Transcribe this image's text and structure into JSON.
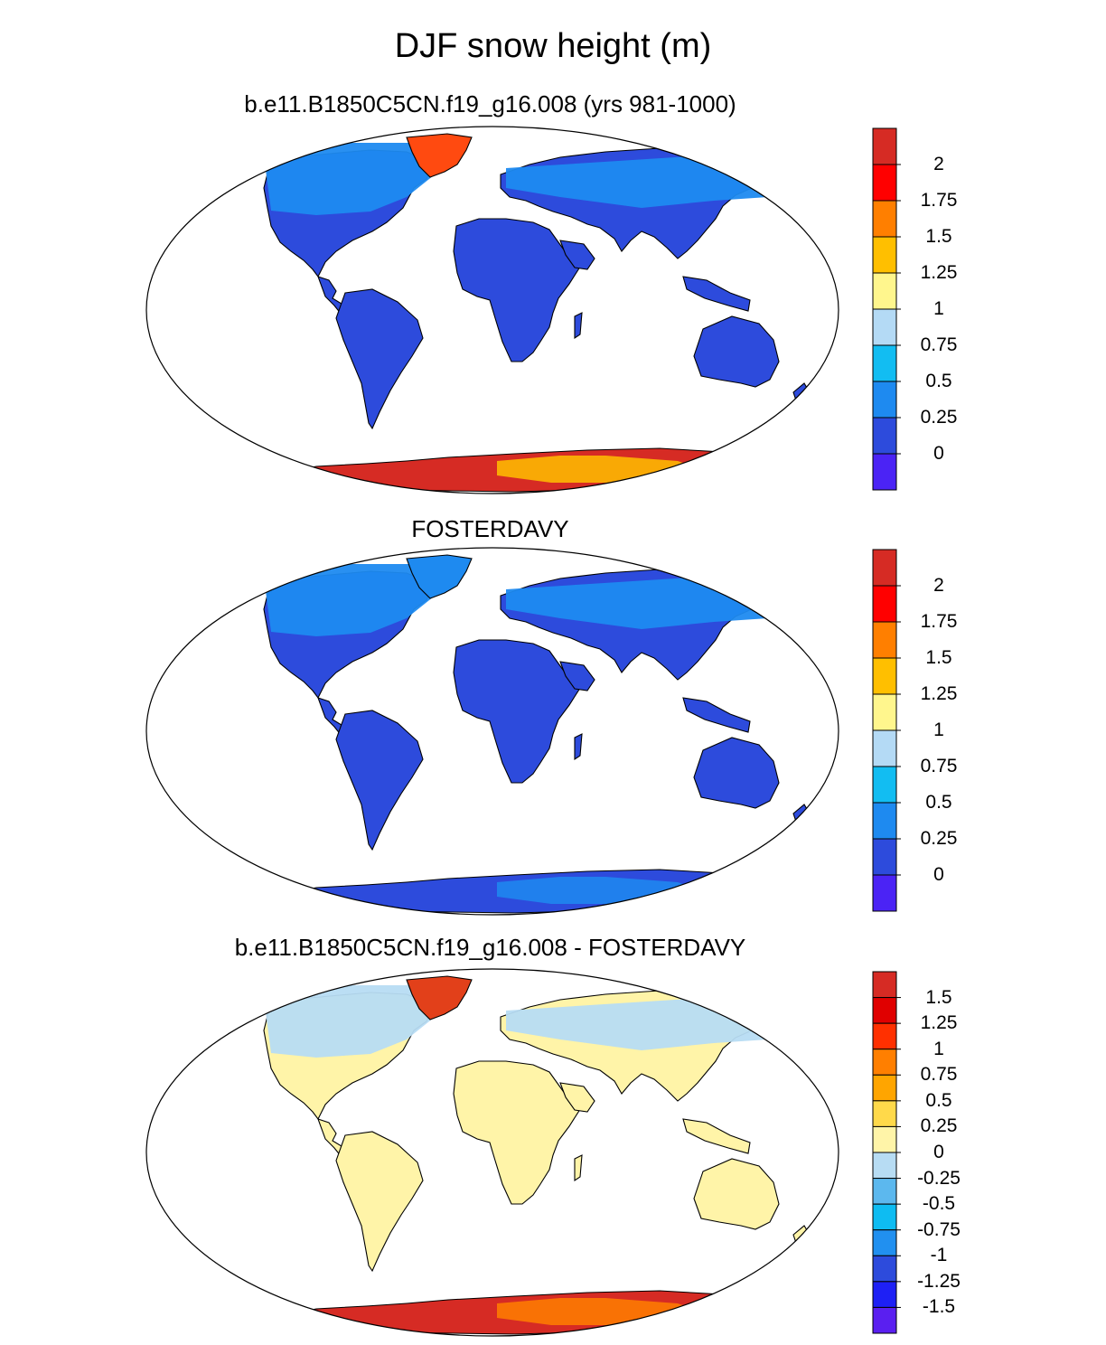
{
  "title": "DJF snow height (m)",
  "panels": [
    {
      "title": "b.e11.B1850C5CN.f19_g16.008 (yrs 981-1000)",
      "colorbar": {
        "labels": [
          "2",
          "1.75",
          "1.5",
          "1.25",
          "1",
          "0.75",
          "0.5",
          "0.25",
          "0"
        ],
        "colors": [
          "#d62b24",
          "#ff0000",
          "#ff7f00",
          "#ffbf00",
          "#fff68d",
          "#b4daf5",
          "#12bdf2",
          "#1e8af0",
          "#2d4bdc",
          "#4b23f5"
        ]
      },
      "fills": {
        "land": "#2d4bdc",
        "north": "#1e8af0",
        "greenland": "#ff4a10",
        "antarctica": "#d62b24",
        "antarctica_accent": "#ffbf00"
      }
    },
    {
      "title": "FOSTERDAVY",
      "colorbar": {
        "labels": [
          "2",
          "1.75",
          "1.5",
          "1.25",
          "1",
          "0.75",
          "0.5",
          "0.25",
          "0"
        ],
        "colors": [
          "#d62b24",
          "#ff0000",
          "#ff7f00",
          "#ffbf00",
          "#fff68d",
          "#b4daf5",
          "#12bdf2",
          "#1e8af0",
          "#2d4bdc",
          "#4b23f5"
        ]
      },
      "fills": {
        "land": "#2d4bdc",
        "north": "#1e8af0",
        "greenland": "#1e8af0",
        "antarctica": "#2d4bdc",
        "antarctica_accent": "#1e8af0"
      }
    },
    {
      "title": "b.e11.B1850C5CN.f19_g16.008 - FOSTERDAVY",
      "colorbar": {
        "labels": [
          "1.5",
          "1.25",
          "1",
          "0.75",
          "0.5",
          "0.25",
          "0",
          "-0.25",
          "-0.5",
          "-0.75",
          "-1",
          "-1.25",
          "-1.5"
        ],
        "colors": [
          "#d62b24",
          "#e00000",
          "#ff3000",
          "#ff7f00",
          "#ffa500",
          "#ffd94a",
          "#fff4a8",
          "#b7dcf3",
          "#5cb8ee",
          "#0ebcf2",
          "#2190f0",
          "#2d4bdc",
          "#1e20f5",
          "#5a1ff0"
        ]
      },
      "fills": {
        "land": "#fff4a8",
        "north": "#b7dcf3",
        "greenland": "#e2401a",
        "antarctica": "#d62b24",
        "antarctica_accent": "#ff7f00"
      }
    }
  ]
}
